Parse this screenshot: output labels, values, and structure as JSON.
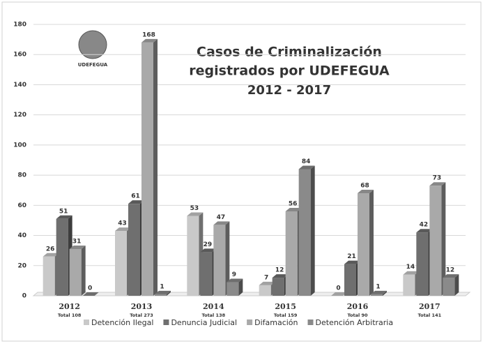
{
  "chart_data": {
    "type": "bar3d",
    "title_lines": [
      "Casos de Criminalización",
      "registrados por UDEFEGUA",
      "2012 - 2017"
    ],
    "logo_text": "UDEFEGUA",
    "categories": [
      "2012",
      "2013",
      "2014",
      "2015",
      "2016",
      "2017"
    ],
    "category_sublabels": [
      "Total 108",
      "Total 273",
      "Total 138",
      "Total 159",
      "Total 90",
      "Total 141"
    ],
    "series": [
      {
        "name": "Detención Ilegal",
        "color": "#c9c9c9",
        "values": [
          26,
          43,
          53,
          7,
          0,
          14
        ]
      },
      {
        "name": "Denuncia Judicial",
        "color": "#6f6f6f",
        "values": [
          51,
          61,
          29,
          12,
          21,
          42
        ]
      },
      {
        "name": "Difamación",
        "color": "#a9a9a9",
        "values": [
          31,
          168,
          47,
          56,
          68,
          73
        ]
      },
      {
        "name": "Detención Arbitraria",
        "color": "#8a8a8a",
        "values": [
          0,
          1,
          9,
          84,
          1,
          12
        ]
      }
    ],
    "ylim": [
      0,
      180
    ],
    "yticks": [
      0,
      20,
      40,
      60,
      80,
      100,
      120,
      140,
      160,
      180
    ],
    "grid": true
  }
}
